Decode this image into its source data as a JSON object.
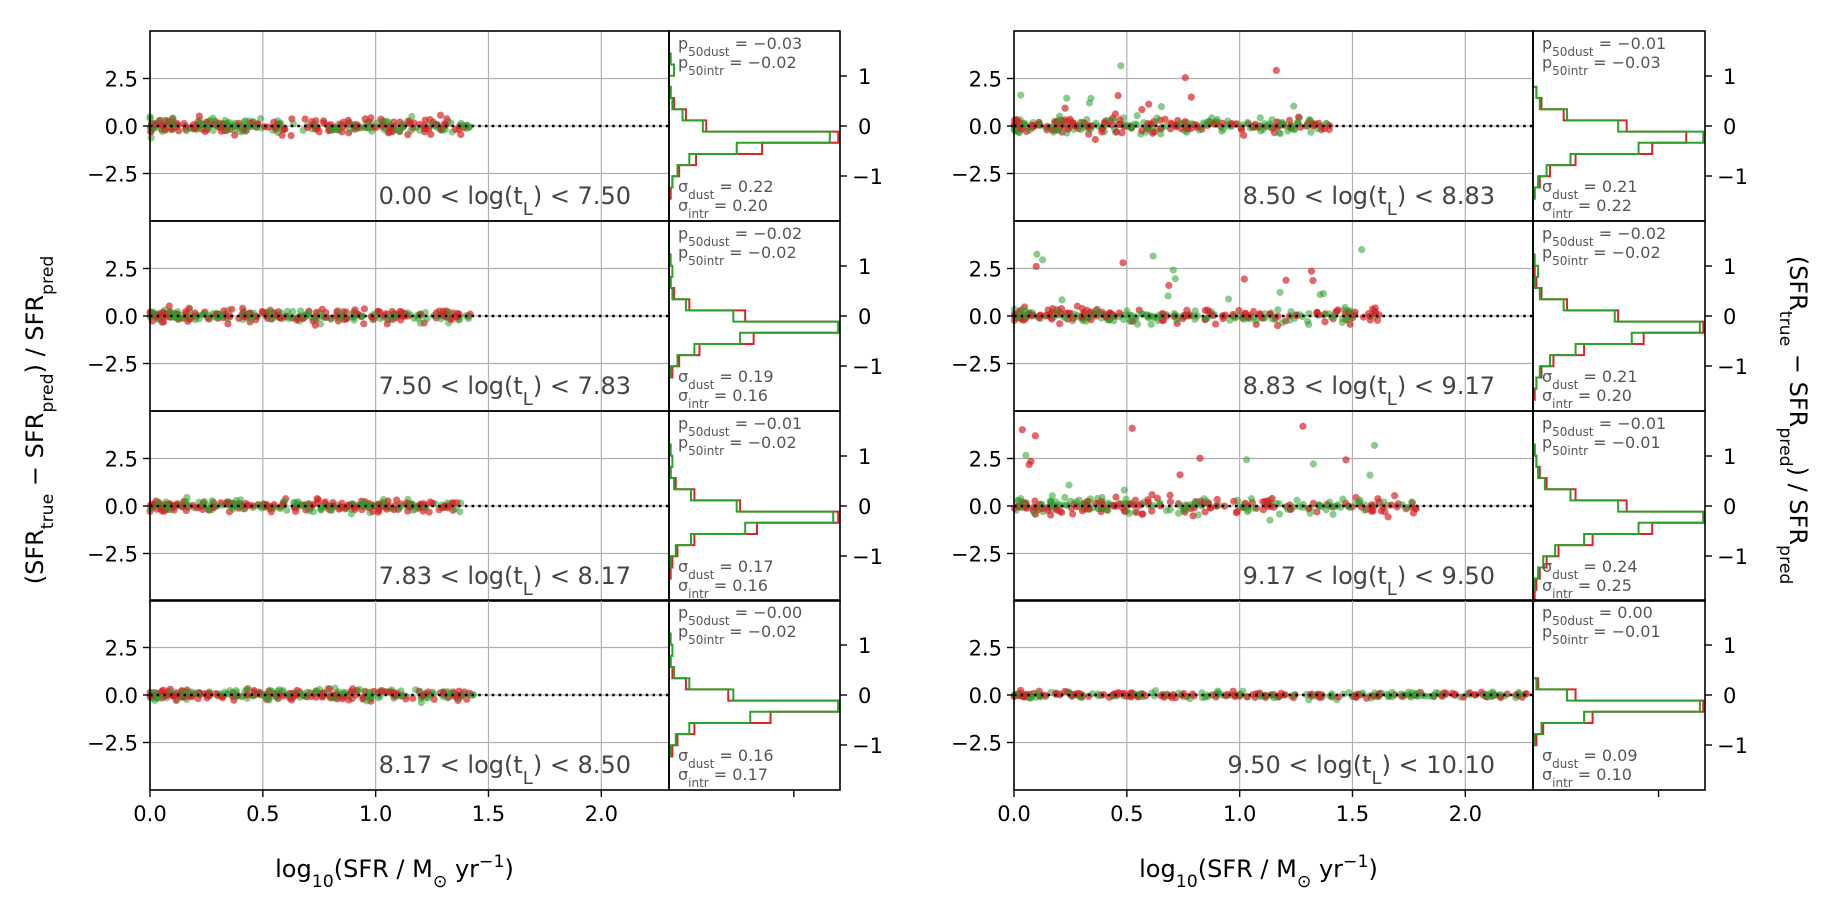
{
  "chart_data": {
    "type": "scatter",
    "title": "",
    "xlabel": "log10(SFR / M⊙ yr⁻¹)",
    "ylabel_left": "(SFRtrue − SFRpred) / SFRpred",
    "ylabel_right": "(SFRtrue − SFRpred) / SFRpred",
    "xlim": [
      0.0,
      2.3
    ],
    "ylim": [
      -5.0,
      5.0
    ],
    "x_ticks": [
      0.0,
      0.5,
      1.0,
      1.5,
      2.0
    ],
    "x_tick_labels": [
      "0.0",
      "0.5",
      "1.0",
      "1.5",
      "2.0"
    ],
    "y_ticks": [
      2.5,
      0.0,
      -2.5
    ],
    "y_tick_labels": [
      "2.5",
      "0.0",
      "−2.5"
    ],
    "hist_ylim": [
      -1.9,
      1.9
    ],
    "hist_y_ticks": [
      1,
      0,
      -1
    ],
    "hist_y_tick_labels": [
      "1",
      "0",
      "−1"
    ],
    "grid": true,
    "series": [
      {
        "name": "dust",
        "color": "#d62728"
      },
      {
        "name": "intrinsic",
        "color": "#2ca02c"
      }
    ],
    "panels": [
      {
        "range_label": "0.00 < log(tL) < 7.50",
        "p50_dust": "−0.03",
        "p50_intr": "−0.02",
        "sigma_dust": "0.22",
        "sigma_intr": "0.20",
        "x_max": 1.42,
        "hist_dust": [
          0,
          0,
          0,
          0,
          0,
          0.01,
          0.03,
          0.1,
          0.22,
          1.0,
          0.55,
          0.16,
          0.06,
          0.02,
          0.01,
          0,
          0
        ],
        "hist_intr": [
          0,
          0,
          0.01,
          0.03,
          0,
          0.01,
          0.02,
          0.08,
          0.2,
          0.95,
          0.4,
          0.12,
          0.05,
          0.02,
          0,
          0,
          0
        ]
      },
      {
        "range_label": "7.50 < log(tL) < 7.83",
        "p50_dust": "−0.02",
        "p50_intr": "−0.02",
        "sigma_dust": "0.19",
        "sigma_intr": "0.16",
        "x_max": 1.42,
        "hist_dust": [
          0,
          0,
          0,
          0,
          0,
          0.01,
          0.03,
          0.12,
          0.45,
          1.0,
          0.5,
          0.18,
          0.06,
          0.02,
          0,
          0,
          0
        ],
        "hist_intr": [
          0,
          0,
          0,
          0.01,
          0.02,
          0.01,
          0.02,
          0.1,
          0.38,
          1.0,
          0.42,
          0.15,
          0.05,
          0.01,
          0,
          0,
          0
        ]
      },
      {
        "range_label": "7.83 < log(tL) < 8.17",
        "p50_dust": "−0.01",
        "p50_intr": "−0.02",
        "sigma_dust": "0.17",
        "sigma_intr": "0.16",
        "x_max": 1.38,
        "hist_dust": [
          0,
          0,
          0,
          0,
          0,
          0.01,
          0.04,
          0.15,
          0.42,
          1.0,
          0.52,
          0.15,
          0.05,
          0.02,
          0.01,
          0,
          0
        ],
        "hist_intr": [
          0,
          0,
          0,
          0.01,
          0.02,
          0.01,
          0.03,
          0.13,
          0.4,
          0.97,
          0.45,
          0.13,
          0.04,
          0.01,
          0,
          0,
          0
        ]
      },
      {
        "range_label": "8.17 < log(tL) < 8.50",
        "p50_dust": "−0.00",
        "p50_intr": "−0.02",
        "sigma_dust": "0.16",
        "sigma_intr": "0.17",
        "x_max": 1.44,
        "hist_dust": [
          0,
          0,
          0,
          0,
          0,
          0.01,
          0.02,
          0.1,
          0.35,
          1.0,
          0.6,
          0.15,
          0.05,
          0.02,
          0,
          0,
          0
        ],
        "hist_intr": [
          0,
          0,
          0,
          0.01,
          0.02,
          0.01,
          0.03,
          0.12,
          0.38,
          1.0,
          0.48,
          0.12,
          0.04,
          0.01,
          0,
          0,
          0
        ]
      },
      {
        "range_label": "8.50 < log(tL) < 8.83",
        "p50_dust": "−0.01",
        "p50_intr": "−0.03",
        "sigma_dust": "0.21",
        "sigma_intr": "0.22",
        "x_max": 1.4,
        "hist_dust": [
          0,
          0,
          0,
          0,
          0,
          0.02,
          0.05,
          0.18,
          0.55,
          0.9,
          0.7,
          0.25,
          0.1,
          0.04,
          0.01,
          0,
          0
        ],
        "hist_intr": [
          0,
          0,
          0,
          0,
          0,
          0.02,
          0.04,
          0.2,
          0.5,
          1.0,
          0.62,
          0.22,
          0.08,
          0.03,
          0.01,
          0,
          0
        ]
      },
      {
        "range_label": "8.83 < log(tL) < 9.17",
        "p50_dust": "−0.02",
        "p50_intr": "−0.02",
        "sigma_dust": "0.21",
        "sigma_intr": "0.20",
        "x_max": 1.62,
        "hist_dust": [
          0,
          0,
          0,
          0,
          0.01,
          0.02,
          0.05,
          0.2,
          0.5,
          1.0,
          0.65,
          0.3,
          0.12,
          0.05,
          0.02,
          0.01,
          0
        ],
        "hist_intr": [
          0,
          0,
          0,
          0.01,
          0.03,
          0.01,
          0.04,
          0.18,
          0.48,
          0.98,
          0.58,
          0.25,
          0.1,
          0.04,
          0.02,
          0,
          0
        ]
      },
      {
        "range_label": "9.17 < log(tL) < 9.50",
        "p50_dust": "−0.01",
        "p50_intr": "−0.01",
        "sigma_dust": "0.24",
        "sigma_intr": "0.25",
        "x_max": 1.8,
        "hist_dust": [
          0,
          0,
          0,
          0.01,
          0.02,
          0.04,
          0.08,
          0.25,
          0.55,
          1.0,
          0.7,
          0.35,
          0.15,
          0.08,
          0.04,
          0.02,
          0.01
        ],
        "hist_intr": [
          0,
          0,
          0,
          0.01,
          0.02,
          0.03,
          0.07,
          0.22,
          0.5,
          1.0,
          0.62,
          0.3,
          0.13,
          0.06,
          0.03,
          0.01,
          0
        ]
      },
      {
        "range_label": "9.50 < log(tL) < 10.10",
        "p50_dust": "0.00",
        "p50_intr": "−0.01",
        "sigma_dust": "0.09",
        "sigma_intr": "0.10",
        "x_max": 2.28,
        "hist_dust": [
          0,
          0,
          0,
          0,
          0,
          0,
          0,
          0.03,
          0.25,
          1.0,
          0.35,
          0.06,
          0.02,
          0,
          0,
          0,
          0
        ],
        "hist_intr": [
          0,
          0,
          0,
          0,
          0,
          0,
          0,
          0.02,
          0.2,
          0.98,
          0.3,
          0.05,
          0.01,
          0,
          0,
          0,
          0
        ]
      }
    ]
  }
}
